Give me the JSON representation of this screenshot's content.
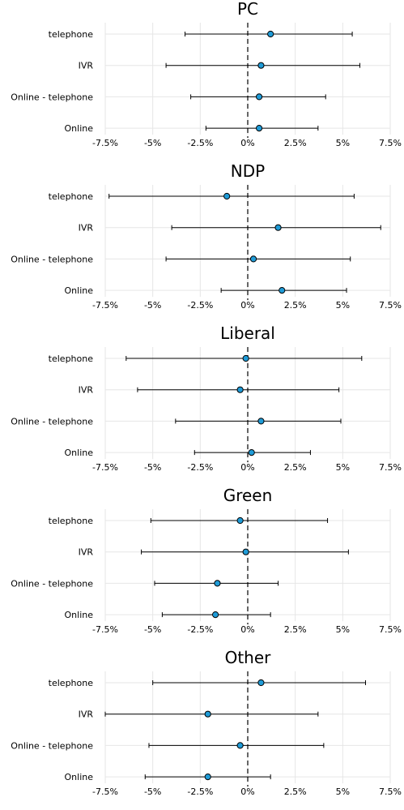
{
  "chart_data": [
    {
      "type": "scatter",
      "title": "PC",
      "categories": [
        "telephone",
        "IVR",
        "Online - telephone",
        "Online"
      ],
      "estimate": [
        1.2,
        0.7,
        0.6,
        0.6
      ],
      "lower": [
        -3.3,
        -4.3,
        -3.0,
        -2.2
      ],
      "upper": [
        5.5,
        5.9,
        4.1,
        3.7
      ],
      "xlim": [
        -7.5,
        7.5
      ],
      "xticks": [
        -7.5,
        -5,
        -2.5,
        0,
        2.5,
        5,
        7.5
      ],
      "xtick_labels": [
        "-7.5%",
        "-5%",
        "-2.5%",
        "0%",
        "2.5%",
        "5%",
        "7.5%"
      ],
      "xlabel": "",
      "ylabel": "",
      "grid": true,
      "legend": "none",
      "colors": {
        "marker": "#1f9bd7",
        "reference_line": "#000000"
      }
    },
    {
      "type": "scatter",
      "title": "NDP",
      "categories": [
        "telephone",
        "IVR",
        "Online - telephone",
        "Online"
      ],
      "estimate": [
        -1.1,
        1.6,
        0.3,
        1.8
      ],
      "lower": [
        -7.3,
        -4.0,
        -4.3,
        -1.4
      ],
      "upper": [
        5.6,
        7.0,
        5.4,
        5.2
      ],
      "xlim": [
        -7.5,
        7.5
      ],
      "xticks": [
        -7.5,
        -5,
        -2.5,
        0,
        2.5,
        5,
        7.5
      ],
      "xtick_labels": [
        "-7.5%",
        "-5%",
        "-2.5%",
        "0%",
        "2.5%",
        "5%",
        "7.5%"
      ],
      "xlabel": "",
      "ylabel": "",
      "grid": true,
      "legend": "none",
      "colors": {
        "marker": "#1f9bd7",
        "reference_line": "#000000"
      }
    },
    {
      "type": "scatter",
      "title": "Liberal",
      "categories": [
        "telephone",
        "IVR",
        "Online - telephone",
        "Online"
      ],
      "estimate": [
        -0.1,
        -0.4,
        0.7,
        0.2
      ],
      "lower": [
        -6.4,
        -5.8,
        -3.8,
        -2.8
      ],
      "upper": [
        6.0,
        4.8,
        4.9,
        3.3
      ],
      "xlim": [
        -7.5,
        7.5
      ],
      "xticks": [
        -7.5,
        -5,
        -2.5,
        0,
        2.5,
        5,
        7.5
      ],
      "xtick_labels": [
        "-7.5%",
        "-5%",
        "-2.5%",
        "0%",
        "2.5%",
        "5%",
        "7.5%"
      ],
      "xlabel": "",
      "ylabel": "",
      "grid": true,
      "legend": "none",
      "colors": {
        "marker": "#1f9bd7",
        "reference_line": "#000000"
      }
    },
    {
      "type": "scatter",
      "title": "Green",
      "categories": [
        "telephone",
        "IVR",
        "Online - telephone",
        "Online"
      ],
      "estimate": [
        -0.4,
        -0.1,
        -1.6,
        -1.7
      ],
      "lower": [
        -5.1,
        -5.6,
        -4.9,
        -4.5
      ],
      "upper": [
        4.2,
        5.3,
        1.6,
        1.2
      ],
      "xlim": [
        -7.5,
        7.5
      ],
      "xticks": [
        -7.5,
        -5,
        -2.5,
        0,
        2.5,
        5,
        7.5
      ],
      "xtick_labels": [
        "-7.5%",
        "-5%",
        "-2.5%",
        "0%",
        "2.5%",
        "5%",
        "7.5%"
      ],
      "xlabel": "",
      "ylabel": "",
      "grid": true,
      "legend": "none",
      "colors": {
        "marker": "#1f9bd7",
        "reference_line": "#000000"
      }
    },
    {
      "type": "scatter",
      "title": "Other",
      "categories": [
        "telephone",
        "IVR",
        "Online - telephone",
        "Online"
      ],
      "estimate": [
        0.7,
        -2.1,
        -0.4,
        -2.1
      ],
      "lower": [
        -5.0,
        -7.5,
        -5.2,
        -5.4
      ],
      "upper": [
        6.2,
        3.7,
        4.0,
        1.2
      ],
      "xlim": [
        -7.5,
        7.5
      ],
      "xticks": [
        -7.5,
        -5,
        -2.5,
        0,
        2.5,
        5,
        7.5
      ],
      "xtick_labels": [
        "-7.5%",
        "-5%",
        "-2.5%",
        "0%",
        "2.5%",
        "5%",
        "7.5%"
      ],
      "xlabel": "",
      "ylabel": "",
      "grid": true,
      "legend": "none",
      "colors": {
        "marker": "#1f9bd7",
        "reference_line": "#000000"
      }
    }
  ]
}
